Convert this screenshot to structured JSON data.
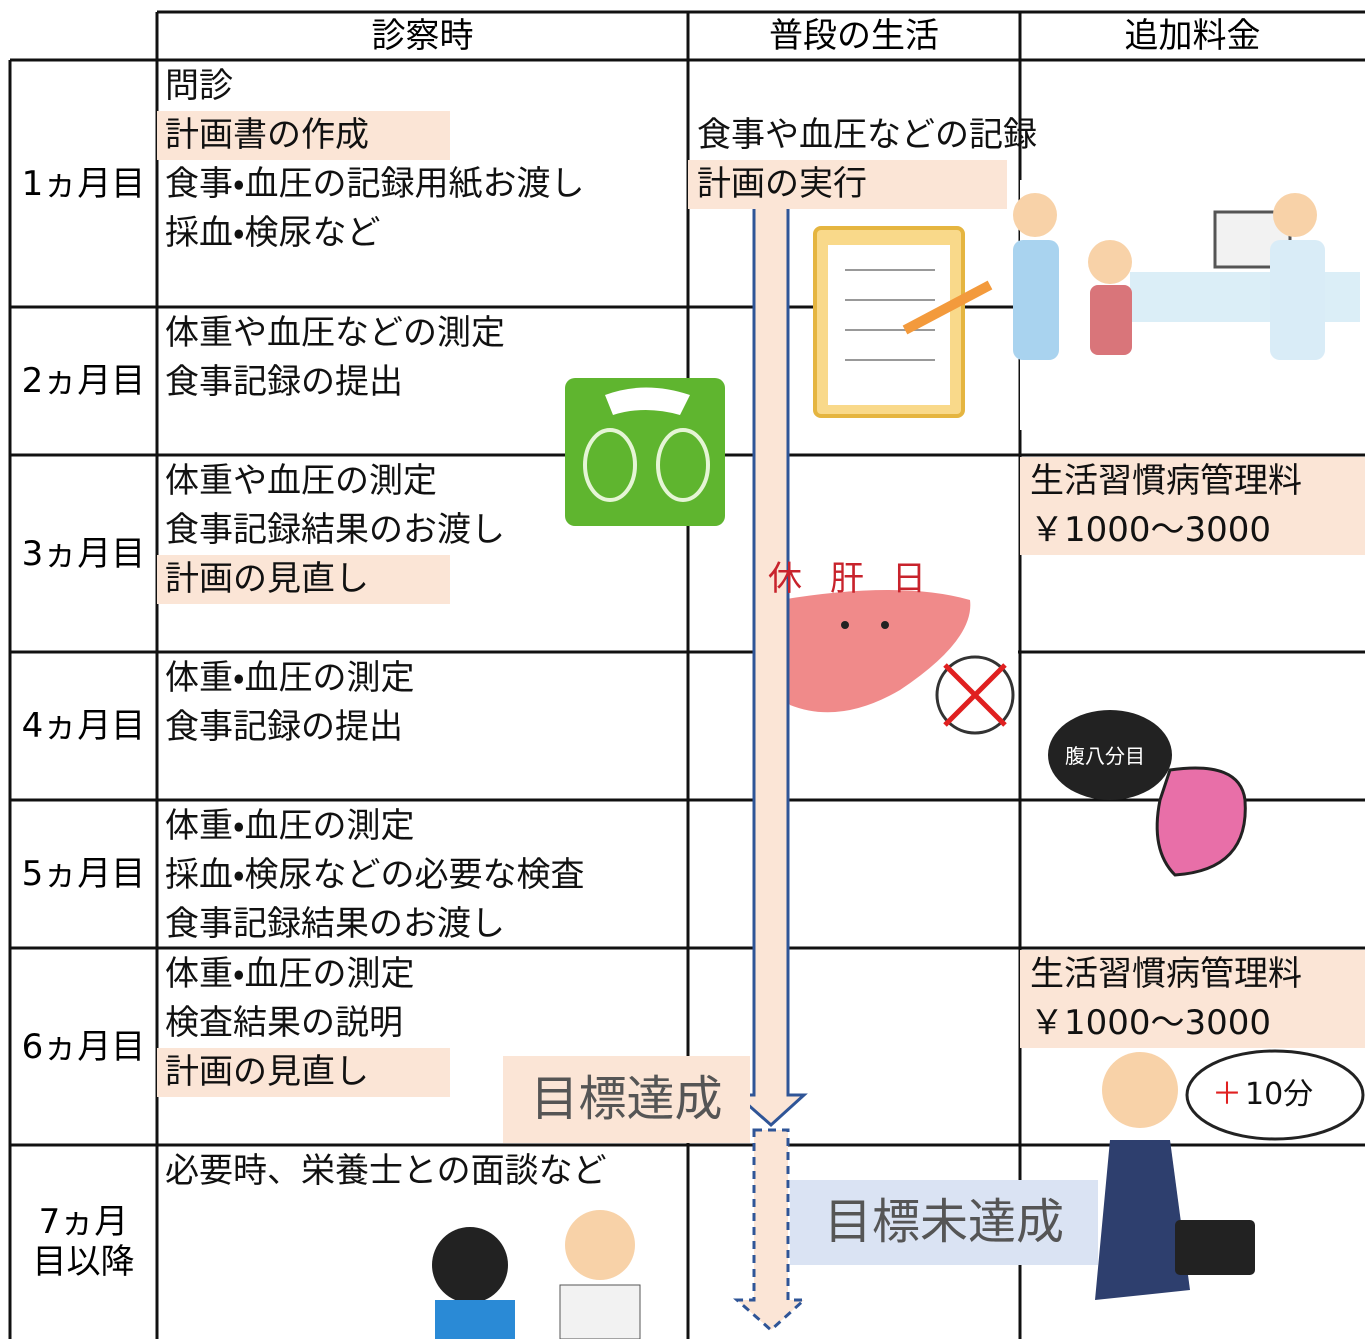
{
  "header": {
    "columns": [
      "診察時",
      "普段の生活",
      "追加料金"
    ]
  },
  "rows": [
    {
      "month": [
        "1ヵ月目"
      ],
      "exam": [
        "問診",
        "計画書の作成",
        "食事・血圧の記録用紙お渡し",
        "採血・検尿など"
      ],
      "daily": [
        "食事や血圧などの記録",
        "計画の実行"
      ],
      "fee": []
    },
    {
      "month": [
        "2ヵ月目"
      ],
      "exam": [
        "体重や血圧などの測定",
        "食事記録の提出"
      ],
      "daily": [],
      "fee": []
    },
    {
      "month": [
        "3ヵ月目"
      ],
      "exam": [
        "体重や血圧の測定",
        "食事記録結果のお渡し",
        "計画の見直し"
      ],
      "daily": [],
      "fee": [
        "生活習慣病管理料",
        "￥1000～3000"
      ]
    },
    {
      "month": [
        "4ヵ月目"
      ],
      "exam": [
        "体重・血圧の測定",
        "食事記録の提出"
      ],
      "daily": [],
      "fee": []
    },
    {
      "month": [
        "5ヵ月目"
      ],
      "exam": [
        "体重・血圧の測定",
        "採血・検尿などの必要な検査",
        "食事記録結果のお渡し"
      ],
      "daily": [],
      "fee": []
    },
    {
      "month": [
        "6ヵ月目"
      ],
      "exam": [
        "体重・血圧の測定",
        "検査結果の説明",
        "計画の見直し"
      ],
      "daily": [],
      "fee": [
        "生活習慣病管理料",
        "￥1000～3000"
      ]
    },
    {
      "month": [
        "7ヵ月",
        "目以降"
      ],
      "exam": [
        "必要時、栄養士との面談など"
      ],
      "daily": [],
      "fee": []
    }
  ],
  "annotations": {
    "achieved": "目標達成",
    "not_achieved": "目標未達成"
  },
  "illustrations": {
    "liver": "休肝日",
    "stomach": "腹八分目",
    "speech_plus": "＋",
    "speech_time": "10分"
  }
}
